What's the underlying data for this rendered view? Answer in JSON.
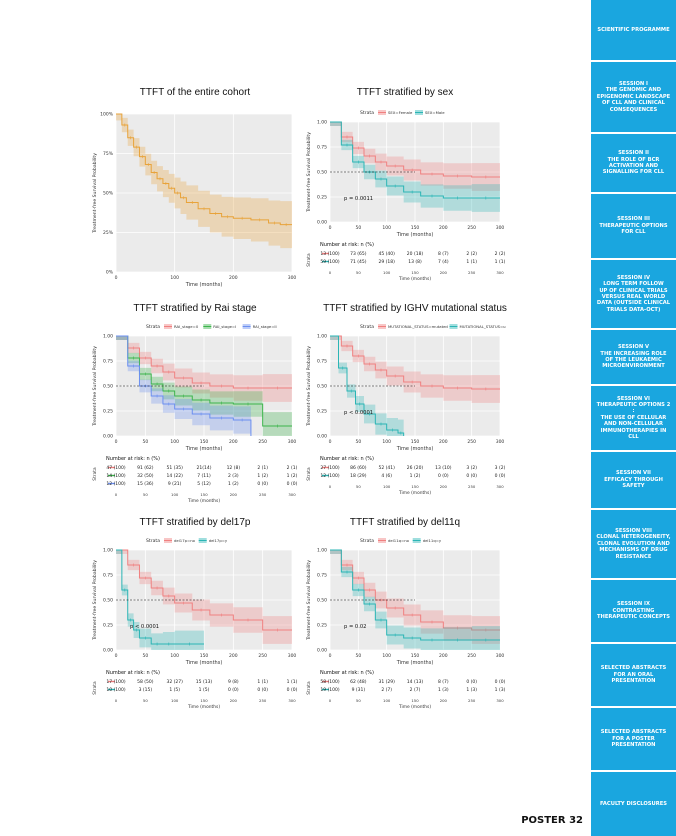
{
  "sidebar": {
    "items": [
      {
        "label": "SCIENTIFIC PROGRAMME"
      },
      {
        "label": "SESSION I\nTHE GENOMIC AND\nEPIGENOMIC LANDSCAPE\nOF CLL AND CLINICAL\nCONSEQUENCES"
      },
      {
        "label": "SESSION II\nTHE ROLE OF BCR\nACTIVATION AND\nSIGNALLING FOR CLL"
      },
      {
        "label": "SESSION III\nTHERAPEUTIC OPTIONS\nFOR CLL"
      },
      {
        "label": "SESSION IV\nLONG TERM FOLLOW\nUP OF CLINICAL TRIALS\nVERSUS REAL WORLD\nDATA (OUTSIDE CLINICAL\nTRIALS DATA-OCT)"
      },
      {
        "label": "SESSION V\nTHE INCREASING ROLE\nOF THE LEUKAEMIC\nMICROENVIRONMENT"
      },
      {
        "label": "SESSION VI\nTHERAPEUTIC OPTIONS 2 :\nTHE USE OF CELLULAR\nAND NON-CELLULAR\nIMMUNOTHERAPIES IN\nCLL"
      },
      {
        "label": "SESSION VII\nEFFICACY THROUGH\nSAFETY"
      },
      {
        "label": "SESSION VIII\nCLONAL HETEROGENEITY,\nCLONAL EVOLUTION AND\nMECHANISMS OF DRUG\nRESISTANCE"
      },
      {
        "label": "SESSION IX\nCONTRASTING\nTHERAPEUTIC CONCEPTS"
      },
      {
        "label": "SELECTED ABSTRACTS\nFOR AN ORAL\nPRESENTATION"
      },
      {
        "label": "SELECTED ABSTRACTS\nFOR A POSTER\nPRESENTATION"
      },
      {
        "label": "FACULTY DISCLOSURES"
      }
    ]
  },
  "footer": {
    "poster_label": "POSTER 32"
  },
  "colors": {
    "sidebar": "#1aa6df",
    "orange": "#e8a33a",
    "red": "#f08080",
    "teal": "#2bb5b5",
    "green": "#3cb44b",
    "blue": "#6b8ff0"
  },
  "chart_data": [
    {
      "type": "line",
      "title": "TTFT of the entire cohort",
      "ylabel": "Treatment-free Survival Probability",
      "xlabel": "Time (months)",
      "yticks": [
        "100%",
        "75%",
        "50%",
        "25%",
        "0%"
      ],
      "xticks": [
        "0",
        "100",
        "200",
        "300"
      ],
      "xlim": [
        0,
        300
      ],
      "ylim": [
        0,
        1
      ],
      "series": [
        {
          "color": "orange",
          "x": [
            0,
            10,
            20,
            30,
            40,
            50,
            60,
            70,
            80,
            90,
            100,
            110,
            120,
            140,
            160,
            180,
            200,
            230,
            260,
            280,
            300
          ],
          "y": [
            1.0,
            0.93,
            0.85,
            0.79,
            0.73,
            0.68,
            0.63,
            0.59,
            0.56,
            0.53,
            0.5,
            0.47,
            0.44,
            0.4,
            0.37,
            0.35,
            0.34,
            0.33,
            0.31,
            0.3,
            0.3
          ]
        }
      ]
    },
    {
      "type": "line",
      "title": "TTFT stratified by sex",
      "legend_title": "Strata",
      "legend": [
        "SEX=Female",
        "SEX=Male"
      ],
      "ylabel": "Treatment-free Survival Probability",
      "xlabel": "Time (months)",
      "yticks": [
        "1.00",
        "0.75",
        "0.50",
        "0.25",
        "0.00"
      ],
      "xticks": [
        "0",
        "50",
        "100",
        "150",
        "200",
        "250",
        "300"
      ],
      "xlim": [
        0,
        300
      ],
      "ylim": [
        0,
        1
      ],
      "pvalue": "p = 0.0011",
      "risk_title": "Number at risk: n (%)",
      "risk_strata_label": "Strata",
      "risk_rows": [
        [
          "13 (100)",
          "73 (65)",
          "45 (40)",
          "20 (18)",
          "8 (7)",
          "2 (2)",
          "2 (2)"
        ],
        [
          "59 (100)",
          "71 (45)",
          "29 (18)",
          "13 (8)",
          "7 (4)",
          "1 (1)",
          "1 (1)"
        ]
      ],
      "series": [
        {
          "color": "red",
          "x": [
            0,
            20,
            40,
            60,
            80,
            100,
            130,
            160,
            200,
            250,
            300
          ],
          "y": [
            1.0,
            0.85,
            0.74,
            0.66,
            0.6,
            0.56,
            0.52,
            0.48,
            0.46,
            0.45,
            0.45
          ]
        },
        {
          "color": "teal",
          "x": [
            0,
            20,
            40,
            60,
            80,
            100,
            130,
            160,
            200,
            250,
            300
          ],
          "y": [
            1.0,
            0.77,
            0.6,
            0.5,
            0.43,
            0.36,
            0.3,
            0.26,
            0.24,
            0.24,
            0.24
          ]
        }
      ]
    },
    {
      "type": "line",
      "title": "TTFT stratified by Rai stage",
      "legend_title": "Strata",
      "legend": [
        "RAI_stage=0",
        "RAI_stage=I",
        "RAI_stage=II"
      ],
      "ylabel": "Treatment-free Survival Probability",
      "xlabel": "Time (months)",
      "yticks": [
        "1.00",
        "0.75",
        "0.50",
        "0.25",
        "0.00"
      ],
      "xticks": [
        "0",
        "50",
        "100",
        "150",
        "200",
        "250",
        "300"
      ],
      "xlim": [
        0,
        300
      ],
      "ylim": [
        0,
        1
      ],
      "risk_title": "Number at risk: n (%)",
      "risk_strata_label": "Strata",
      "risk_rows": [
        [
          "47 (100)",
          "91 (62)",
          "51 (35)",
          "21(14)",
          "12 (8)",
          "2 (1)",
          "2 (1)"
        ],
        [
          "14 (100)",
          "32 (50)",
          "14 (22)",
          "7 (11)",
          "2 (3)",
          "1 (2)",
          "1 (2)"
        ],
        [
          "12 (100)",
          "15 (36)",
          "9 (21)",
          "5 (12)",
          "1 (2)",
          "0 (0)",
          "0 (0)"
        ]
      ],
      "series": [
        {
          "color": "red",
          "x": [
            0,
            20,
            40,
            60,
            80,
            100,
            130,
            160,
            200,
            250,
            300
          ],
          "y": [
            1.0,
            0.88,
            0.78,
            0.7,
            0.64,
            0.58,
            0.53,
            0.5,
            0.48,
            0.48,
            0.48
          ]
        },
        {
          "color": "green",
          "x": [
            0,
            20,
            40,
            60,
            80,
            100,
            130,
            160,
            200,
            250,
            300
          ],
          "y": [
            1.0,
            0.78,
            0.62,
            0.52,
            0.45,
            0.4,
            0.36,
            0.33,
            0.32,
            0.1,
            0.1
          ]
        },
        {
          "color": "blue",
          "x": [
            0,
            20,
            40,
            60,
            80,
            100,
            130,
            160,
            200,
            230
          ],
          "y": [
            1.0,
            0.7,
            0.5,
            0.4,
            0.32,
            0.27,
            0.22,
            0.18,
            0.16,
            0.0
          ]
        }
      ]
    },
    {
      "type": "line",
      "title": "TTFT stratified by IGHV mutational status",
      "legend_title": "Strata",
      "legend": [
        "MUTATIONAL_STATUS=mutated",
        "MUTATIONAL_STATUS=unmutated"
      ],
      "ylabel": "Treatment-free Survival Probability",
      "xlabel": "Time (months)",
      "yticks": [
        "1.00",
        "0.75",
        "0.50",
        "0.25",
        "0.00"
      ],
      "xticks": [
        "0",
        "50",
        "100",
        "150",
        "200",
        "250",
        "300"
      ],
      "xlim": [
        0,
        300
      ],
      "ylim": [
        0,
        1
      ],
      "pvalue": "p < 0.0001",
      "risk_title": "Number at risk: n (%)",
      "risk_strata_label": "Strata",
      "risk_rows": [
        [
          "27 (100)",
          "86 (60)",
          "52 (41)",
          "26 (20)",
          "13 (10)",
          "3 (2)",
          "3 (2)"
        ],
        [
          "12 (100)",
          "18 (29)",
          "4 (6)",
          "1 (2)",
          "0 (0)",
          "0 (0)",
          "0 (0)"
        ]
      ],
      "series": [
        {
          "color": "red",
          "x": [
            0,
            20,
            40,
            60,
            80,
            100,
            130,
            160,
            200,
            250,
            300
          ],
          "y": [
            1.0,
            0.9,
            0.8,
            0.72,
            0.66,
            0.6,
            0.54,
            0.5,
            0.48,
            0.47,
            0.47
          ]
        },
        {
          "color": "teal",
          "x": [
            0,
            15,
            30,
            45,
            60,
            80,
            100,
            120,
            130
          ],
          "y": [
            1.0,
            0.68,
            0.45,
            0.32,
            0.22,
            0.12,
            0.06,
            0.03,
            0.0
          ]
        }
      ]
    },
    {
      "type": "line",
      "title": "TTFT stratified by del17p",
      "legend_title": "Strata",
      "legend": [
        "del17p=no",
        "del17p=y"
      ],
      "ylabel": "Treatment-free Survival Probability",
      "xlabel": "Time (months)",
      "yticks": [
        "1.00",
        "0.75",
        "0.50",
        "0.25",
        "0.00"
      ],
      "xticks": [
        "0",
        "50",
        "100",
        "150",
        "200",
        "250",
        "300"
      ],
      "xlim": [
        0,
        300
      ],
      "ylim": [
        0,
        1
      ],
      "pvalue": "p < 0.0001",
      "risk_title": "Number at risk: n (%)",
      "risk_strata_label": "Strata",
      "risk_rows": [
        [
          "17 (100)",
          "58 (50)",
          "32 (27)",
          "15 (13)",
          "9 (8)",
          "1 (1)",
          "1 (1)"
        ],
        [
          "10 (100)",
          "3 (15)",
          "1 (5)",
          "1 (5)",
          "0 (0)",
          "0 (0)",
          "0 (0)"
        ]
      ],
      "series": [
        {
          "color": "red",
          "x": [
            0,
            20,
            40,
            60,
            80,
            100,
            130,
            160,
            200,
            250,
            300
          ],
          "y": [
            1.0,
            0.85,
            0.72,
            0.62,
            0.54,
            0.47,
            0.4,
            0.35,
            0.3,
            0.2,
            0.2
          ]
        },
        {
          "color": "teal",
          "x": [
            0,
            10,
            20,
            30,
            40,
            60,
            80,
            100,
            150
          ],
          "y": [
            1.0,
            0.6,
            0.3,
            0.2,
            0.12,
            0.06,
            0.06,
            0.06,
            0.06
          ]
        }
      ]
    },
    {
      "type": "line",
      "title": "TTFT stratified by del11q",
      "legend_title": "Strata",
      "legend": [
        "del11q=no",
        "del11q=y"
      ],
      "ylabel": "Treatment-free Survival Probability",
      "xlabel": "Time (months)",
      "yticks": [
        "1.00",
        "0.75",
        "0.50",
        "0.25",
        "0.00"
      ],
      "xticks": [
        "0",
        "50",
        "100",
        "150",
        "200",
        "250",
        "300"
      ],
      "xlim": [
        0,
        300
      ],
      "ylim": [
        0,
        1
      ],
      "pvalue": "p = 0.02",
      "risk_title": "Number at risk: n (%)",
      "risk_strata_label": "Strata",
      "risk_rows": [
        [
          "58 (100)",
          "62 (48)",
          "31 (29)",
          "14 (13)",
          "8 (7)",
          "0 (0)",
          "0 (0)"
        ],
        [
          "19 (100)",
          "9 (31)",
          "2 (7)",
          "2 (7)",
          "1 (3)",
          "1 (3)",
          "1 (3)"
        ]
      ],
      "series": [
        {
          "color": "red",
          "x": [
            0,
            20,
            40,
            60,
            80,
            100,
            130,
            160,
            200,
            250,
            300
          ],
          "y": [
            1.0,
            0.85,
            0.72,
            0.6,
            0.5,
            0.42,
            0.35,
            0.28,
            0.22,
            0.2,
            0.2
          ]
        },
        {
          "color": "teal",
          "x": [
            0,
            20,
            40,
            60,
            80,
            100,
            130,
            160,
            200,
            250,
            300
          ],
          "y": [
            1.0,
            0.78,
            0.6,
            0.46,
            0.3,
            0.15,
            0.12,
            0.1,
            0.1,
            0.1,
            0.1
          ]
        }
      ]
    }
  ]
}
